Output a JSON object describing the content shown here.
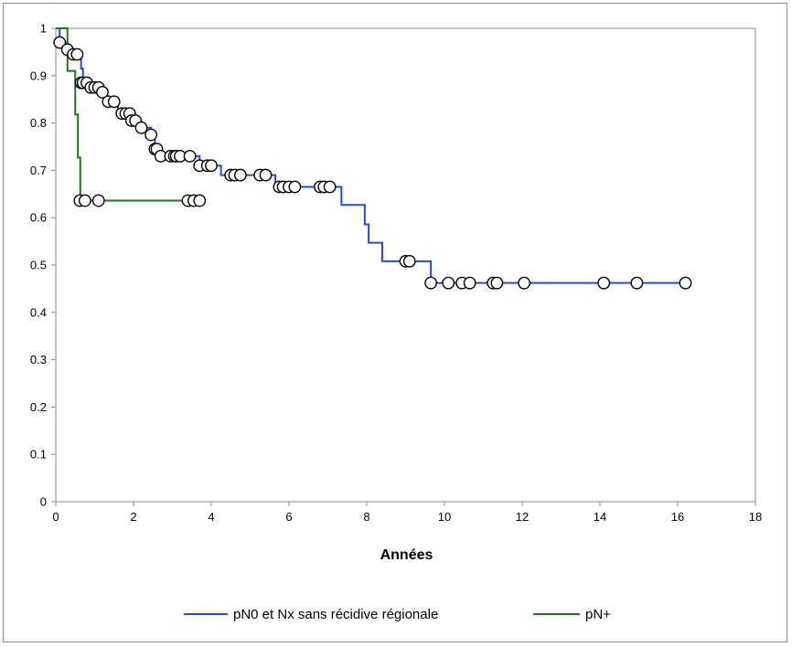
{
  "chart_data": {
    "type": "line",
    "title": "",
    "xlabel": "Années",
    "ylabel": "",
    "xlim": [
      0,
      18
    ],
    "ylim": [
      0,
      1
    ],
    "x_ticks": [
      "0",
      "2",
      "4",
      "6",
      "8",
      "10",
      "12",
      "14",
      "16",
      "18"
    ],
    "y_ticks": [
      "0",
      "0.1",
      "0.2",
      "0.3",
      "0.4",
      "0.5",
      "0.6",
      "0.7",
      "0.8",
      "0.9",
      "1"
    ],
    "grid": false,
    "legend_position": "bottom",
    "series": [
      {
        "name": "pN0 et Nx sans récidive régionale",
        "color": "#1f4fd6",
        "step": [
          [
            0,
            1
          ],
          [
            0.1,
            0.97
          ],
          [
            0.3,
            0.955
          ],
          [
            0.45,
            0.945
          ],
          [
            0.65,
            0.915
          ],
          [
            0.7,
            0.885
          ],
          [
            0.95,
            0.875
          ],
          [
            1.15,
            0.865
          ],
          [
            1.3,
            0.845
          ],
          [
            1.6,
            0.82
          ],
          [
            1.95,
            0.805
          ],
          [
            2.2,
            0.79
          ],
          [
            2.45,
            0.775
          ],
          [
            2.55,
            0.745
          ],
          [
            2.7,
            0.73
          ],
          [
            3.7,
            0.71
          ],
          [
            4.25,
            0.69
          ],
          [
            5.65,
            0.665
          ],
          [
            7.35,
            0.627
          ],
          [
            7.95,
            0.586
          ],
          [
            8.05,
            0.547
          ],
          [
            8.4,
            0.508
          ],
          [
            9.65,
            0.462
          ],
          [
            16.2,
            0.462
          ]
        ],
        "censored": [
          [
            0.1,
            0.97
          ],
          [
            0.3,
            0.955
          ],
          [
            0.45,
            0.945
          ],
          [
            0.55,
            0.945
          ],
          [
            0.65,
            0.885
          ],
          [
            0.7,
            0.885
          ],
          [
            0.8,
            0.885
          ],
          [
            0.9,
            0.875
          ],
          [
            1.0,
            0.875
          ],
          [
            1.1,
            0.875
          ],
          [
            1.2,
            0.865
          ],
          [
            1.35,
            0.845
          ],
          [
            1.5,
            0.845
          ],
          [
            1.7,
            0.82
          ],
          [
            1.8,
            0.82
          ],
          [
            1.9,
            0.82
          ],
          [
            1.95,
            0.805
          ],
          [
            2.05,
            0.805
          ],
          [
            2.2,
            0.79
          ],
          [
            2.45,
            0.775
          ],
          [
            2.55,
            0.745
          ],
          [
            2.6,
            0.745
          ],
          [
            2.7,
            0.73
          ],
          [
            2.95,
            0.73
          ],
          [
            3.05,
            0.73
          ],
          [
            3.1,
            0.73
          ],
          [
            3.2,
            0.73
          ],
          [
            3.45,
            0.73
          ],
          [
            3.7,
            0.71
          ],
          [
            3.9,
            0.71
          ],
          [
            4.0,
            0.71
          ],
          [
            4.5,
            0.69
          ],
          [
            4.6,
            0.69
          ],
          [
            4.75,
            0.69
          ],
          [
            5.25,
            0.69
          ],
          [
            5.4,
            0.69
          ],
          [
            5.75,
            0.665
          ],
          [
            5.85,
            0.665
          ],
          [
            6.0,
            0.665
          ],
          [
            6.15,
            0.665
          ],
          [
            6.8,
            0.665
          ],
          [
            6.9,
            0.665
          ],
          [
            7.05,
            0.665
          ],
          [
            9.0,
            0.508
          ],
          [
            9.1,
            0.508
          ],
          [
            9.65,
            0.462
          ],
          [
            10.1,
            0.462
          ],
          [
            10.45,
            0.462
          ],
          [
            10.65,
            0.462
          ],
          [
            11.25,
            0.462
          ],
          [
            11.35,
            0.462
          ],
          [
            12.05,
            0.462
          ],
          [
            14.1,
            0.462
          ],
          [
            14.95,
            0.462
          ],
          [
            16.2,
            0.462
          ]
        ]
      },
      {
        "name": "pN+",
        "color": "#1a7a1a",
        "step": [
          [
            0,
            1
          ],
          [
            0.3,
            0.91
          ],
          [
            0.5,
            0.818
          ],
          [
            0.57,
            0.727
          ],
          [
            0.63,
            0.636
          ],
          [
            3.7,
            0.636
          ]
        ],
        "censored": [
          [
            0.62,
            0.636
          ],
          [
            0.75,
            0.636
          ],
          [
            1.1,
            0.636
          ],
          [
            3.4,
            0.636
          ],
          [
            3.55,
            0.636
          ],
          [
            3.7,
            0.636
          ]
        ]
      }
    ]
  }
}
